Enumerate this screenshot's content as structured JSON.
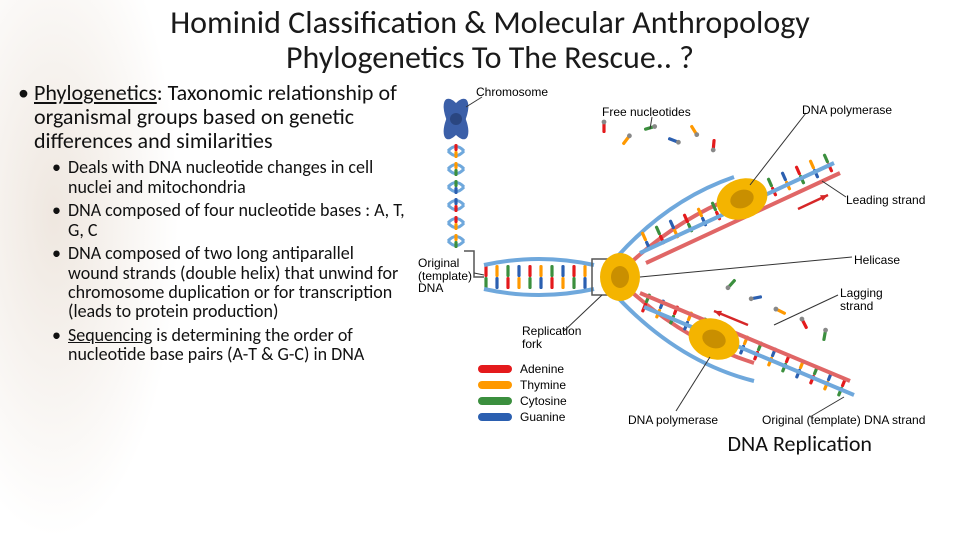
{
  "title_line1": "Hominid Classification & Molecular Anthropology",
  "title_line2": "Phylogenetics To The Rescue.. ?",
  "bullets": {
    "main_term": "Phylogenetics",
    "main_rest": ": Taxonomic relationship of organismal groups based on genetic differences and similarities",
    "sub": [
      "Deals with DNA nucleotide changes in cell nuclei and mitochondria",
      "DNA composed of four nucleotide bases : A, T, G, C",
      "DNA composed of two long antiparallel wound strands (double helix) that unwind for chromosome duplication or for transcription (leads to protein production)"
    ],
    "seq_term": "Sequencing",
    "seq_rest": " is determining the order of nucleotide base pairs (A-T & G-C) in DNA"
  },
  "diagram": {
    "caption": "DNA Replication",
    "labels": {
      "chromosome": "Chromosome",
      "free_nucleotides": "Free nucleotides",
      "dna_polymerase_top": "DNA polymerase",
      "leading_strand": "Leading strand",
      "helicase": "Helicase",
      "lagging_strand": "Lagging strand",
      "replication_fork": "Replication fork",
      "original_template": "Original (template) DNA",
      "dna_polymerase_bot": "DNA polymerase",
      "original_strand_bot": "Original (template) DNA strand"
    },
    "legend": [
      {
        "name": "Adenine",
        "color": "#e41a1c"
      },
      {
        "name": "Thymine",
        "color": "#ff9900"
      },
      {
        "name": "Cytosine",
        "color": "#3b8f3e"
      },
      {
        "name": "Guanine",
        "color": "#2b5fb0"
      }
    ],
    "colors": {
      "chromosome": "#3b5fa8",
      "polymerase": "#f4b400",
      "helicase": "#f4b400",
      "backbone_old": "#6fa8dc",
      "backbone_new": "#e06666",
      "leader_line": "#333333",
      "arrow": "#d62728"
    },
    "nucleotide_colors": [
      "#e41a1c",
      "#ff9900",
      "#3b8f3e",
      "#2b5fb0"
    ]
  }
}
